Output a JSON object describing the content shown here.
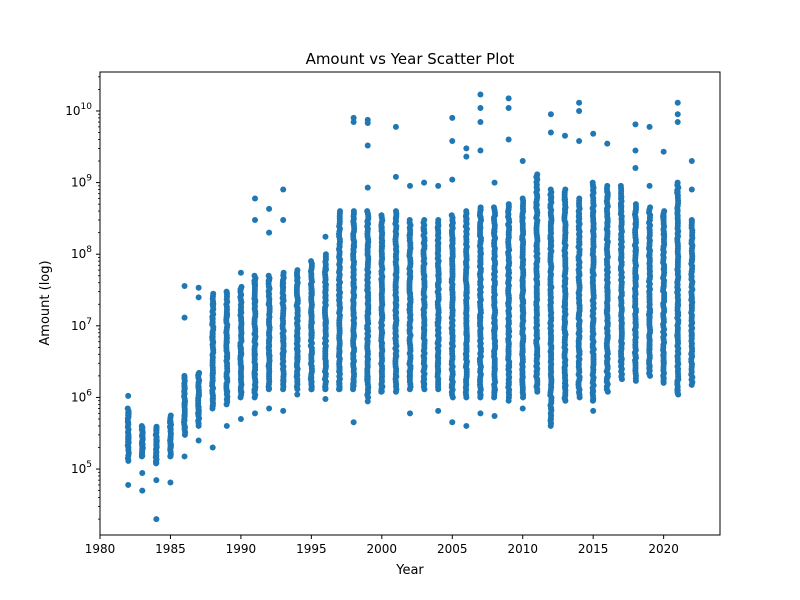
{
  "chart_data": {
    "type": "scatter",
    "title": "Amount vs Year Scatter Plot",
    "xlabel": "Year",
    "ylabel": "Amount (log)",
    "xlim": [
      1980,
      2024
    ],
    "ylim": [
      12000,
      35000000000
    ],
    "yscale": "log",
    "grid": false,
    "marker_color": "#1f77b4",
    "x_ticks": [
      {
        "value": 1980,
        "label": "1980"
      },
      {
        "value": 1985,
        "label": "1985"
      },
      {
        "value": 1990,
        "label": "1990"
      },
      {
        "value": 1995,
        "label": "1995"
      },
      {
        "value": 2000,
        "label": "2000"
      },
      {
        "value": 2005,
        "label": "2005"
      },
      {
        "value": 2010,
        "label": "2010"
      },
      {
        "value": 2015,
        "label": "2015"
      },
      {
        "value": 2020,
        "label": "2020"
      }
    ],
    "y_ticks": [
      {
        "value": 100000,
        "base": "10",
        "exp": "5"
      },
      {
        "value": 1000000,
        "base": "10",
        "exp": "6"
      },
      {
        "value": 10000000,
        "base": "10",
        "exp": "7"
      },
      {
        "value": 100000000,
        "base": "10",
        "exp": "8"
      },
      {
        "value": 1000000000,
        "base": "10",
        "exp": "9"
      },
      {
        "value": 10000000000,
        "base": "10",
        "exp": "10"
      }
    ],
    "year_ranges": [
      {
        "x": 1982,
        "min": 130000,
        "max": 700000,
        "extra": [
          1050000,
          60000
        ]
      },
      {
        "x": 1983,
        "min": 150000,
        "max": 400000,
        "extra": [
          88000,
          50000
        ]
      },
      {
        "x": 1984,
        "min": 120000,
        "max": 390000,
        "extra": [
          70000,
          20000
        ]
      },
      {
        "x": 1985,
        "min": 150000,
        "max": 560000,
        "extra": [
          65000
        ]
      },
      {
        "x": 1986,
        "min": 300000,
        "max": 2000000,
        "extra": [
          36000000,
          13000000,
          150000
        ]
      },
      {
        "x": 1987,
        "min": 400000,
        "max": 2200000,
        "extra": [
          34000000,
          25000000,
          250000
        ]
      },
      {
        "x": 1988,
        "min": 700000,
        "max": 28000000,
        "extra": [
          200000
        ]
      },
      {
        "x": 1989,
        "min": 800000,
        "max": 30000000,
        "extra": [
          400000
        ]
      },
      {
        "x": 1990,
        "min": 1000000,
        "max": 35000000,
        "extra": [
          55000000,
          500000
        ]
      },
      {
        "x": 1991,
        "min": 1000000,
        "max": 50000000,
        "extra": [
          600000000,
          300000000,
          600000
        ]
      },
      {
        "x": 1992,
        "min": 1300000,
        "max": 50000000,
        "extra": [
          430000000,
          200000000,
          700000
        ]
      },
      {
        "x": 1993,
        "min": 1300000,
        "max": 55000000,
        "extra": [
          800000000,
          300000000,
          650000
        ]
      },
      {
        "x": 1994,
        "min": 1300000,
        "max": 60000000,
        "extra": [
          1100000
        ]
      },
      {
        "x": 1995,
        "min": 1300000,
        "max": 80000000,
        "extra": [
          1300000
        ]
      },
      {
        "x": 1996,
        "min": 1300000,
        "max": 100000000,
        "extra": [
          175000000,
          950000
        ]
      },
      {
        "x": 1997,
        "min": 1300000,
        "max": 400000000,
        "extra": []
      },
      {
        "x": 1998,
        "min": 1300000,
        "max": 400000000,
        "extra": [
          8000000000,
          7000000000,
          450000
        ]
      },
      {
        "x": 1999,
        "min": 1000000,
        "max": 400000000,
        "extra": [
          7500000000,
          6800000000,
          3300000000,
          850000000,
          880000
        ]
      },
      {
        "x": 2000,
        "min": 1200000,
        "max": 350000000,
        "extra": []
      },
      {
        "x": 2001,
        "min": 1200000,
        "max": 400000000,
        "extra": [
          6000000000,
          1200000000
        ]
      },
      {
        "x": 2002,
        "min": 1300000,
        "max": 300000000,
        "extra": [
          900000000,
          600000
        ]
      },
      {
        "x": 2003,
        "min": 1300000,
        "max": 300000000,
        "extra": [
          1000000000
        ]
      },
      {
        "x": 2004,
        "min": 1300000,
        "max": 300000000,
        "extra": [
          900000000,
          650000
        ]
      },
      {
        "x": 2005,
        "min": 1000000,
        "max": 350000000,
        "extra": [
          8000000000,
          3800000000,
          1100000000,
          450000
        ]
      },
      {
        "x": 2006,
        "min": 1000000,
        "max": 400000000,
        "extra": [
          3000000000,
          2300000000,
          400000
        ]
      },
      {
        "x": 2007,
        "min": 1000000,
        "max": 450000000,
        "extra": [
          17000000000,
          11000000000,
          7000000000,
          2800000000,
          600000
        ]
      },
      {
        "x": 2008,
        "min": 1000000,
        "max": 450000000,
        "extra": [
          1000000000,
          550000
        ]
      },
      {
        "x": 2009,
        "min": 1000000,
        "max": 500000000,
        "extra": [
          15000000000,
          11000000000,
          4000000000,
          900000
        ]
      },
      {
        "x": 2010,
        "min": 1000000,
        "max": 600000000,
        "extra": [
          2000000000,
          700000
        ]
      },
      {
        "x": 2011,
        "min": 1200000,
        "max": 1300000000,
        "extra": []
      },
      {
        "x": 2012,
        "min": 400000,
        "max": 800000000,
        "extra": [
          9000000000,
          5000000000
        ]
      },
      {
        "x": 2013,
        "min": 900000,
        "max": 800000000,
        "extra": [
          4500000000
        ]
      },
      {
        "x": 2014,
        "min": 1000000,
        "max": 600000000,
        "extra": [
          13000000000,
          10000000000,
          3800000000
        ]
      },
      {
        "x": 2015,
        "min": 900000,
        "max": 1000000000,
        "extra": [
          4800000000,
          650000
        ]
      },
      {
        "x": 2016,
        "min": 1200000,
        "max": 900000000,
        "extra": [
          3500000000
        ]
      },
      {
        "x": 2017,
        "min": 1800000,
        "max": 900000000,
        "extra": []
      },
      {
        "x": 2018,
        "min": 1700000,
        "max": 500000000,
        "extra": [
          6500000000,
          2800000000,
          1600000000
        ]
      },
      {
        "x": 2019,
        "min": 2000000,
        "max": 450000000,
        "extra": [
          6000000000,
          900000000
        ]
      },
      {
        "x": 2020,
        "min": 1700000,
        "max": 400000000,
        "extra": [
          2700000000,
          1600000
        ]
      },
      {
        "x": 2021,
        "min": 1100000,
        "max": 1000000000,
        "extra": [
          13000000000,
          9000000000,
          7000000000
        ]
      },
      {
        "x": 2022,
        "min": 1500000,
        "max": 300000000,
        "extra": [
          2000000000,
          800000000
        ]
      }
    ]
  }
}
